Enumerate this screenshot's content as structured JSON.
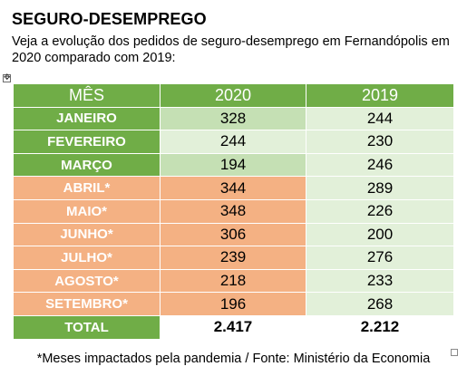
{
  "heading": {
    "title": "SEGURO-DESEMPREGO",
    "subtitle": "Veja a evolução dos pedidos de seguro-desemprego em Fernandópolis em 2020 comparado com 2019:"
  },
  "table": {
    "headers": {
      "month": "MÊS",
      "year_a": "2020",
      "year_b": "2019"
    },
    "rows": [
      {
        "month": "JANEIRO",
        "v2020": "328",
        "v2019": "244"
      },
      {
        "month": "FEVEREIRO",
        "v2020": "244",
        "v2019": "230"
      },
      {
        "month": "MARÇO",
        "v2020": "194",
        "v2019": "246"
      },
      {
        "month": "ABRIL*",
        "v2020": "344",
        "v2019": "289"
      },
      {
        "month": "MAIO*",
        "v2020": "348",
        "v2019": "226"
      },
      {
        "month": "JUNHO*",
        "v2020": "306",
        "v2019": "200"
      },
      {
        "month": "JULHO*",
        "v2020": "239",
        "v2019": "276"
      },
      {
        "month": "AGOSTO*",
        "v2020": "218",
        "v2019": "233"
      },
      {
        "month": "SETEMBRO*",
        "v2020": "196",
        "v2019": "268"
      }
    ],
    "total": {
      "label": "TOTAL",
      "v2020": "2.417",
      "v2019": "2.212"
    }
  },
  "footnote": "*Meses impactados pela pandemia / Fonte: Ministério da Economia",
  "colors": {
    "header_green": "#70ad47",
    "light_green": "#c5e0b4",
    "lighter_green": "#e2f0d9",
    "orange": "#f4b183"
  }
}
